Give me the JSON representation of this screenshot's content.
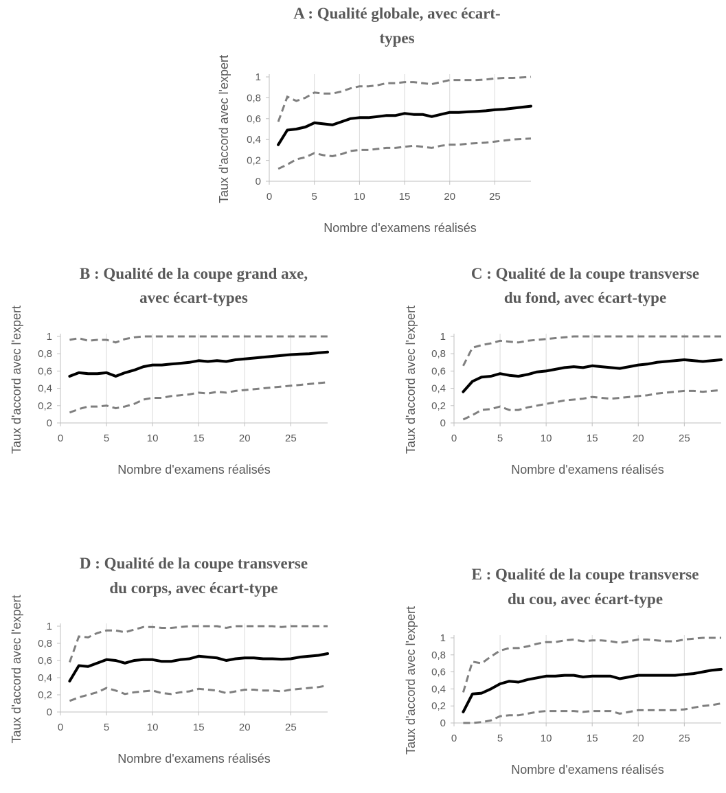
{
  "chart_data": [
    {
      "id": "A",
      "type": "line",
      "title": [
        "A : Qualité globale, avec écart-",
        "types"
      ],
      "xlabel": "Nombre d'examens réalisés",
      "ylabel": "Taux d'accord avec l'expert",
      "xticks": [
        "0",
        "5",
        "10",
        "15",
        "20",
        "25"
      ],
      "yticks": [
        "0",
        "0,2",
        "0,4",
        "0,6",
        "0,8",
        "1"
      ],
      "xlim": [
        0,
        29
      ],
      "ylim": [
        0,
        1
      ],
      "grid": "vertical",
      "x": [
        1,
        2,
        3,
        4,
        5,
        6,
        7,
        8,
        9,
        10,
        11,
        12,
        13,
        14,
        15,
        16,
        17,
        18,
        19,
        20,
        21,
        22,
        23,
        24,
        25,
        26,
        27,
        28,
        29
      ],
      "series": [
        {
          "role": "mean",
          "values": [
            0.35,
            0.49,
            0.5,
            0.52,
            0.56,
            0.55,
            0.54,
            0.57,
            0.6,
            0.61,
            0.61,
            0.62,
            0.63,
            0.63,
            0.65,
            0.64,
            0.64,
            0.62,
            0.64,
            0.66,
            0.66,
            0.665,
            0.67,
            0.675,
            0.685,
            0.69,
            0.7,
            0.71,
            0.72
          ]
        },
        {
          "role": "upper",
          "values": [
            0.57,
            0.81,
            0.77,
            0.8,
            0.85,
            0.84,
            0.84,
            0.86,
            0.89,
            0.91,
            0.91,
            0.92,
            0.94,
            0.94,
            0.95,
            0.95,
            0.94,
            0.93,
            0.95,
            0.97,
            0.97,
            0.97,
            0.97,
            0.975,
            0.985,
            0.99,
            0.99,
            0.995,
            1.0
          ]
        },
        {
          "role": "lower",
          "values": [
            0.12,
            0.16,
            0.21,
            0.23,
            0.27,
            0.25,
            0.24,
            0.26,
            0.29,
            0.3,
            0.3,
            0.31,
            0.32,
            0.32,
            0.33,
            0.34,
            0.33,
            0.32,
            0.34,
            0.35,
            0.35,
            0.36,
            0.365,
            0.37,
            0.38,
            0.39,
            0.4,
            0.405,
            0.41
          ]
        }
      ]
    },
    {
      "id": "B",
      "type": "line",
      "title": [
        "B : Qualité de la coupe grand axe,",
        "avec écart-types"
      ],
      "xlabel": "Nombre d'examens réalisés",
      "ylabel": "Taux d'accord avec l'expert",
      "xticks": [
        "0",
        "5",
        "10",
        "15",
        "20",
        "25"
      ],
      "yticks": [
        "0",
        "0,2",
        "0,4",
        "0,6",
        "0,8",
        "1"
      ],
      "xlim": [
        0,
        29
      ],
      "ylim": [
        0,
        1
      ],
      "grid": "vertical",
      "x": [
        1,
        2,
        3,
        4,
        5,
        6,
        7,
        8,
        9,
        10,
        11,
        12,
        13,
        14,
        15,
        16,
        17,
        18,
        19,
        20,
        21,
        22,
        23,
        24,
        25,
        26,
        27,
        28,
        29
      ],
      "series": [
        {
          "role": "mean",
          "values": [
            0.54,
            0.58,
            0.57,
            0.57,
            0.58,
            0.54,
            0.58,
            0.61,
            0.65,
            0.67,
            0.67,
            0.68,
            0.69,
            0.7,
            0.72,
            0.71,
            0.72,
            0.71,
            0.73,
            0.74,
            0.75,
            0.76,
            0.77,
            0.78,
            0.79,
            0.795,
            0.8,
            0.81,
            0.82
          ]
        },
        {
          "role": "upper",
          "values": [
            0.96,
            0.98,
            0.95,
            0.96,
            0.96,
            0.93,
            0.97,
            0.99,
            1.0,
            1.0,
            1.0,
            1.0,
            1.0,
            1.0,
            1.0,
            1.0,
            1.0,
            1.0,
            1.0,
            1.0,
            1.0,
            1.0,
            1.0,
            1.0,
            1.0,
            1.0,
            1.0,
            1.0,
            1.0
          ]
        },
        {
          "role": "lower",
          "values": [
            0.12,
            0.16,
            0.19,
            0.19,
            0.2,
            0.17,
            0.19,
            0.22,
            0.27,
            0.29,
            0.29,
            0.31,
            0.32,
            0.33,
            0.35,
            0.34,
            0.36,
            0.35,
            0.37,
            0.38,
            0.39,
            0.4,
            0.41,
            0.42,
            0.43,
            0.44,
            0.45,
            0.46,
            0.47
          ]
        }
      ]
    },
    {
      "id": "C",
      "type": "line",
      "title": [
        "C : Qualité de la coupe transverse",
        "du fond, avec écart-type"
      ],
      "xlabel": "Nombre d'examens réalisés",
      "ylabel": "Taux d'accord avec l'expert",
      "xticks": [
        "0",
        "5",
        "10",
        "15",
        "20",
        "25"
      ],
      "yticks": [
        "0",
        "0,2",
        "0,4",
        "0,6",
        "0,8",
        "1"
      ],
      "xlim": [
        0,
        29
      ],
      "ylim": [
        0,
        1
      ],
      "grid": "vertical",
      "x": [
        1,
        2,
        3,
        4,
        5,
        6,
        7,
        8,
        9,
        10,
        11,
        12,
        13,
        14,
        15,
        16,
        17,
        18,
        19,
        20,
        21,
        22,
        23,
        24,
        25,
        26,
        27,
        28,
        29
      ],
      "series": [
        {
          "role": "mean",
          "values": [
            0.36,
            0.48,
            0.53,
            0.54,
            0.57,
            0.55,
            0.54,
            0.56,
            0.59,
            0.6,
            0.62,
            0.64,
            0.65,
            0.64,
            0.66,
            0.65,
            0.64,
            0.63,
            0.65,
            0.67,
            0.68,
            0.7,
            0.71,
            0.72,
            0.73,
            0.72,
            0.71,
            0.72,
            0.73
          ]
        },
        {
          "role": "upper",
          "values": [
            0.66,
            0.87,
            0.9,
            0.92,
            0.95,
            0.94,
            0.93,
            0.95,
            0.96,
            0.97,
            0.98,
            0.99,
            1.0,
            1.0,
            1.0,
            1.0,
            1.0,
            1.0,
            1.0,
            1.0,
            1.0,
            1.0,
            1.0,
            1.0,
            1.0,
            1.0,
            1.0,
            1.0,
            1.0
          ]
        },
        {
          "role": "lower",
          "values": [
            0.04,
            0.09,
            0.15,
            0.16,
            0.19,
            0.15,
            0.15,
            0.18,
            0.2,
            0.22,
            0.24,
            0.26,
            0.27,
            0.28,
            0.3,
            0.29,
            0.28,
            0.29,
            0.3,
            0.31,
            0.32,
            0.34,
            0.35,
            0.36,
            0.37,
            0.37,
            0.36,
            0.37,
            0.38
          ]
        }
      ]
    },
    {
      "id": "D",
      "type": "line",
      "title": [
        "D : Qualité de la coupe transverse",
        "du corps, avec écart-type"
      ],
      "xlabel": "Nombre d'examens réalisés",
      "ylabel": "Taux d'accord avec l'expert",
      "xticks": [
        "0",
        "5",
        "10",
        "15",
        "20",
        "25"
      ],
      "yticks": [
        "0",
        "0,2",
        "0,4",
        "0,6",
        "0,8",
        "1"
      ],
      "xlim": [
        0,
        29
      ],
      "ylim": [
        0,
        1
      ],
      "grid": "vertical",
      "x": [
        1,
        2,
        3,
        4,
        5,
        6,
        7,
        8,
        9,
        10,
        11,
        12,
        13,
        14,
        15,
        16,
        17,
        18,
        19,
        20,
        21,
        22,
        23,
        24,
        25,
        26,
        27,
        28,
        29
      ],
      "series": [
        {
          "role": "mean",
          "values": [
            0.36,
            0.54,
            0.53,
            0.57,
            0.61,
            0.6,
            0.57,
            0.6,
            0.61,
            0.61,
            0.59,
            0.59,
            0.61,
            0.62,
            0.65,
            0.64,
            0.63,
            0.6,
            0.62,
            0.63,
            0.63,
            0.62,
            0.62,
            0.615,
            0.62,
            0.64,
            0.65,
            0.66,
            0.68
          ]
        },
        {
          "role": "upper",
          "values": [
            0.58,
            0.88,
            0.87,
            0.92,
            0.95,
            0.95,
            0.93,
            0.96,
            0.99,
            0.99,
            0.98,
            0.98,
            0.99,
            1.0,
            1.0,
            1.0,
            1.0,
            0.98,
            1.0,
            1.0,
            1.0,
            1.0,
            1.0,
            0.99,
            1.0,
            1.0,
            1.0,
            1.0,
            1.0
          ]
        },
        {
          "role": "lower",
          "values": [
            0.13,
            0.17,
            0.2,
            0.23,
            0.28,
            0.25,
            0.21,
            0.23,
            0.24,
            0.25,
            0.22,
            0.21,
            0.23,
            0.24,
            0.27,
            0.26,
            0.25,
            0.22,
            0.24,
            0.26,
            0.26,
            0.25,
            0.25,
            0.24,
            0.26,
            0.27,
            0.28,
            0.29,
            0.31
          ]
        }
      ]
    },
    {
      "id": "E",
      "type": "line",
      "title": [
        "E : Qualité de la coupe transverse",
        "du cou, avec écart-type"
      ],
      "xlabel": "Nombre d'examens réalisés",
      "ylabel": "Taux d'accord avec l'expert",
      "xticks": [
        "0",
        "5",
        "10",
        "15",
        "20",
        "25"
      ],
      "yticks": [
        "0",
        "0,2",
        "0,4",
        "0,6",
        "0,8",
        "1"
      ],
      "xlim": [
        0,
        29
      ],
      "ylim": [
        0,
        1
      ],
      "grid": "vertical",
      "x": [
        1,
        2,
        3,
        4,
        5,
        6,
        7,
        8,
        9,
        10,
        11,
        12,
        13,
        14,
        15,
        16,
        17,
        18,
        19,
        20,
        21,
        22,
        23,
        24,
        25,
        26,
        27,
        28,
        29
      ],
      "series": [
        {
          "role": "mean",
          "values": [
            0.13,
            0.34,
            0.35,
            0.4,
            0.46,
            0.49,
            0.48,
            0.51,
            0.53,
            0.55,
            0.55,
            0.56,
            0.56,
            0.54,
            0.55,
            0.55,
            0.55,
            0.52,
            0.54,
            0.56,
            0.56,
            0.56,
            0.56,
            0.56,
            0.57,
            0.58,
            0.6,
            0.62,
            0.63
          ]
        },
        {
          "role": "upper",
          "values": [
            0.36,
            0.72,
            0.7,
            0.78,
            0.85,
            0.88,
            0.88,
            0.9,
            0.93,
            0.95,
            0.95,
            0.97,
            0.98,
            0.96,
            0.97,
            0.97,
            0.96,
            0.94,
            0.96,
            0.98,
            0.98,
            0.97,
            0.96,
            0.96,
            0.98,
            0.99,
            1.0,
            1.0,
            1.0
          ]
        },
        {
          "role": "lower",
          "values": [
            0.0,
            0.0,
            0.01,
            0.03,
            0.08,
            0.09,
            0.09,
            0.11,
            0.13,
            0.14,
            0.14,
            0.14,
            0.14,
            0.13,
            0.14,
            0.14,
            0.14,
            0.11,
            0.13,
            0.15,
            0.15,
            0.15,
            0.15,
            0.15,
            0.16,
            0.18,
            0.2,
            0.21,
            0.23
          ]
        }
      ]
    }
  ]
}
